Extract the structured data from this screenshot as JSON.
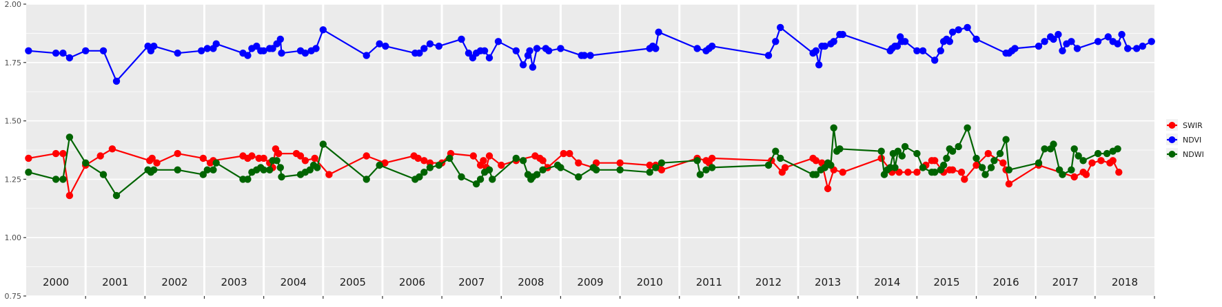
{
  "chart_data": {
    "type": "line",
    "title": "",
    "xlabel": "",
    "ylabel": "",
    "xlim": [
      2000,
      2019
    ],
    "ylim": [
      0.75,
      2.0
    ],
    "y_ticks": [
      "0.75",
      "1.00",
      "1.25",
      "1.50",
      "1.75",
      "2.00"
    ],
    "year_labels": [
      "2000",
      "2001",
      "2002",
      "2003",
      "2004",
      "2005",
      "2006",
      "2007",
      "2008",
      "2009",
      "2010",
      "2011",
      "2012",
      "2013",
      "2014",
      "2015",
      "2016",
      "2017",
      "2018"
    ],
    "grid": true,
    "legend_position": "right",
    "series": [
      {
        "name": "SWIR",
        "color": "#ff0000",
        "x": [
          2000.04,
          2000.5,
          2000.62,
          2000.73,
          2001.0,
          2001.25,
          2001.45,
          2002.08,
          2002.12,
          2002.2,
          2002.55,
          2002.98,
          2003.1,
          2003.15,
          2003.65,
          2003.73,
          2003.8,
          2003.92,
          2004.0,
          2004.1,
          2004.15,
          2004.2,
          2004.25,
          2004.55,
          2004.62,
          2004.7,
          2004.86,
          2005.1,
          2005.73,
          2006.04,
          2006.53,
          2006.6,
          2006.7,
          2006.8,
          2007.0,
          2007.15,
          2007.53,
          2007.65,
          2007.7,
          2007.75,
          2007.8,
          2008.0,
          2008.25,
          2008.57,
          2008.65,
          2008.7,
          2008.78,
          2009.05,
          2009.15,
          2009.3,
          2009.55,
          2009.6,
          2010.0,
          2010.5,
          2010.6,
          2010.65,
          2010.7,
          2011.3,
          2011.45,
          2011.5,
          2011.55,
          2012.55,
          2012.73,
          2012.78,
          2013.25,
          2013.3,
          2013.4,
          2013.5,
          2013.6,
          2013.75,
          2014.4,
          2014.55,
          2014.58,
          2014.7,
          2014.85,
          2015.0,
          2015.15,
          2015.25,
          2015.3,
          2015.45,
          2015.55,
          2015.6,
          2015.75,
          2015.8,
          2016.0,
          2016.2,
          2016.45,
          2016.5,
          2016.55,
          2017.05,
          2017.65,
          2017.8,
          2017.85,
          2017.95,
          2018.1,
          2018.25,
          2018.3,
          2018.4
        ],
        "values": [
          1.34,
          1.36,
          1.36,
          1.18,
          1.31,
          1.35,
          1.38,
          1.33,
          1.34,
          1.32,
          1.36,
          1.34,
          1.32,
          1.33,
          1.35,
          1.34,
          1.35,
          1.34,
          1.34,
          1.32,
          1.3,
          1.38,
          1.36,
          1.36,
          1.35,
          1.33,
          1.34,
          1.27,
          1.35,
          1.32,
          1.35,
          1.34,
          1.33,
          1.32,
          1.32,
          1.36,
          1.35,
          1.31,
          1.33,
          1.3,
          1.35,
          1.31,
          1.33,
          1.35,
          1.34,
          1.33,
          1.3,
          1.36,
          1.36,
          1.32,
          1.3,
          1.32,
          1.32,
          1.31,
          1.31,
          1.3,
          1.29,
          1.34,
          1.33,
          1.32,
          1.34,
          1.33,
          1.28,
          1.3,
          1.34,
          1.33,
          1.32,
          1.21,
          1.29,
          1.28,
          1.34,
          1.29,
          1.28,
          1.28,
          1.28,
          1.28,
          1.31,
          1.33,
          1.33,
          1.28,
          1.29,
          1.29,
          1.28,
          1.25,
          1.31,
          1.36,
          1.32,
          1.29,
          1.23,
          1.31,
          1.26,
          1.28,
          1.27,
          1.32,
          1.33,
          1.32,
          1.33,
          1.28
        ]
      },
      {
        "name": "NDVI",
        "color": "#0000ff",
        "x": [
          2000.04,
          2000.5,
          2000.62,
          2000.73,
          2001.0,
          2001.3,
          2001.52,
          2002.05,
          2002.1,
          2002.15,
          2002.55,
          2002.95,
          2003.05,
          2003.15,
          2003.2,
          2003.65,
          2003.73,
          2003.8,
          2003.88,
          2003.95,
          2004.0,
          2004.1,
          2004.15,
          2004.22,
          2004.28,
          2004.3,
          2004.62,
          2004.7,
          2004.8,
          2004.88,
          2005.0,
          2005.73,
          2005.95,
          2006.05,
          2006.55,
          2006.62,
          2006.7,
          2006.8,
          2006.95,
          2007.33,
          2007.45,
          2007.52,
          2007.58,
          2007.65,
          2007.72,
          2007.8,
          2007.95,
          2008.25,
          2008.37,
          2008.45,
          2008.48,
          2008.53,
          2008.6,
          2008.75,
          2008.8,
          2009.0,
          2009.35,
          2009.4,
          2009.5,
          2010.5,
          2010.55,
          2010.6,
          2010.65,
          2011.3,
          2011.45,
          2011.5,
          2011.55,
          2012.5,
          2012.62,
          2012.7,
          2013.25,
          2013.3,
          2013.35,
          2013.4,
          2013.45,
          2013.55,
          2013.6,
          2013.7,
          2013.75,
          2014.55,
          2014.58,
          2014.63,
          2014.67,
          2014.72,
          2014.75,
          2014.8,
          2015.0,
          2015.1,
          2015.3,
          2015.4,
          2015.45,
          2015.5,
          2015.55,
          2015.6,
          2015.7,
          2015.85,
          2016.0,
          2016.5,
          2016.55,
          2016.6,
          2016.65,
          2017.05,
          2017.15,
          2017.25,
          2017.3,
          2017.38,
          2017.45,
          2017.52,
          2017.6,
          2017.7,
          2018.05,
          2018.22,
          2018.3,
          2018.38,
          2018.45,
          2018.55,
          2018.7,
          2018.8,
          2018.95
        ],
        "values": [
          1.8,
          1.79,
          1.79,
          1.77,
          1.8,
          1.8,
          1.67,
          1.82,
          1.8,
          1.82,
          1.79,
          1.8,
          1.81,
          1.81,
          1.83,
          1.79,
          1.78,
          1.81,
          1.82,
          1.8,
          1.8,
          1.81,
          1.81,
          1.83,
          1.85,
          1.79,
          1.8,
          1.79,
          1.8,
          1.81,
          1.89,
          1.78,
          1.83,
          1.82,
          1.79,
          1.79,
          1.81,
          1.83,
          1.82,
          1.85,
          1.79,
          1.77,
          1.79,
          1.8,
          1.8,
          1.77,
          1.84,
          1.8,
          1.74,
          1.78,
          1.8,
          1.73,
          1.81,
          1.81,
          1.8,
          1.81,
          1.78,
          1.78,
          1.78,
          1.81,
          1.82,
          1.81,
          1.88,
          1.81,
          1.8,
          1.81,
          1.82,
          1.78,
          1.84,
          1.9,
          1.79,
          1.8,
          1.74,
          1.82,
          1.82,
          1.83,
          1.84,
          1.87,
          1.87,
          1.8,
          1.81,
          1.82,
          1.82,
          1.86,
          1.84,
          1.84,
          1.8,
          1.8,
          1.76,
          1.8,
          1.84,
          1.85,
          1.84,
          1.88,
          1.89,
          1.9,
          1.85,
          1.79,
          1.79,
          1.8,
          1.81,
          1.82,
          1.84,
          1.86,
          1.85,
          1.87,
          1.8,
          1.83,
          1.84,
          1.81,
          1.84,
          1.86,
          1.84,
          1.83,
          1.87,
          1.81,
          1.81,
          1.82,
          1.84
        ]
      },
      {
        "name": "NDWI",
        "color": "#006400",
        "x": [
          2000.04,
          2000.5,
          2000.62,
          2000.73,
          2001.0,
          2001.3,
          2001.52,
          2002.05,
          2002.1,
          2002.15,
          2002.55,
          2002.98,
          2003.05,
          2003.15,
          2003.2,
          2003.65,
          2003.73,
          2003.8,
          2003.88,
          2003.95,
          2004.0,
          2004.1,
          2004.15,
          2004.22,
          2004.28,
          2004.3,
          2004.62,
          2004.7,
          2004.78,
          2004.84,
          2004.9,
          2005.0,
          2005.73,
          2005.95,
          2006.55,
          2006.62,
          2006.7,
          2006.8,
          2006.95,
          2007.13,
          2007.33,
          2007.58,
          2007.65,
          2007.72,
          2007.8,
          2007.85,
          2008.25,
          2008.37,
          2008.45,
          2008.5,
          2008.53,
          2008.6,
          2008.7,
          2008.95,
          2009.0,
          2009.3,
          2009.55,
          2009.6,
          2010.0,
          2010.5,
          2010.6,
          2010.7,
          2011.3,
          2011.35,
          2011.45,
          2011.55,
          2012.5,
          2012.62,
          2012.7,
          2013.25,
          2013.3,
          2013.38,
          2013.45,
          2013.5,
          2013.55,
          2013.6,
          2013.65,
          2013.7,
          2014.4,
          2014.45,
          2014.5,
          2014.55,
          2014.6,
          2014.63,
          2014.68,
          2014.75,
          2014.8,
          2015.0,
          2015.1,
          2015.25,
          2015.3,
          2015.4,
          2015.45,
          2015.5,
          2015.55,
          2015.6,
          2015.7,
          2015.85,
          2016.0,
          2016.1,
          2016.15,
          2016.25,
          2016.3,
          2016.4,
          2016.5,
          2016.55,
          2017.05,
          2017.15,
          2017.25,
          2017.3,
          2017.4,
          2017.45,
          2017.6,
          2017.65,
          2017.72,
          2017.8,
          2018.05,
          2018.2,
          2018.3,
          2018.38
        ],
        "values": [
          1.28,
          1.25,
          1.25,
          1.43,
          1.32,
          1.27,
          1.18,
          1.29,
          1.28,
          1.29,
          1.29,
          1.27,
          1.29,
          1.29,
          1.32,
          1.25,
          1.25,
          1.28,
          1.29,
          1.3,
          1.29,
          1.29,
          1.33,
          1.33,
          1.3,
          1.26,
          1.27,
          1.28,
          1.29,
          1.31,
          1.3,
          1.4,
          1.25,
          1.31,
          1.25,
          1.26,
          1.28,
          1.3,
          1.31,
          1.34,
          1.26,
          1.23,
          1.25,
          1.28,
          1.29,
          1.25,
          1.34,
          1.33,
          1.27,
          1.25,
          1.26,
          1.27,
          1.29,
          1.31,
          1.3,
          1.26,
          1.3,
          1.29,
          1.29,
          1.28,
          1.3,
          1.32,
          1.33,
          1.27,
          1.29,
          1.3,
          1.31,
          1.37,
          1.34,
          1.27,
          1.27,
          1.29,
          1.3,
          1.32,
          1.31,
          1.47,
          1.37,
          1.38,
          1.37,
          1.27,
          1.29,
          1.3,
          1.36,
          1.3,
          1.37,
          1.35,
          1.39,
          1.36,
          1.3,
          1.28,
          1.28,
          1.29,
          1.31,
          1.34,
          1.38,
          1.37,
          1.39,
          1.47,
          1.34,
          1.3,
          1.27,
          1.3,
          1.33,
          1.36,
          1.42,
          1.29,
          1.32,
          1.38,
          1.38,
          1.4,
          1.29,
          1.27,
          1.29,
          1.38,
          1.35,
          1.33,
          1.36,
          1.36,
          1.37,
          1.38
        ]
      }
    ],
    "legend": [
      {
        "label": "SWIR",
        "color": "#ff0000"
      },
      {
        "label": "NDVI",
        "color": "#0000ff"
      },
      {
        "label": "NDWI",
        "color": "#006400"
      }
    ]
  }
}
